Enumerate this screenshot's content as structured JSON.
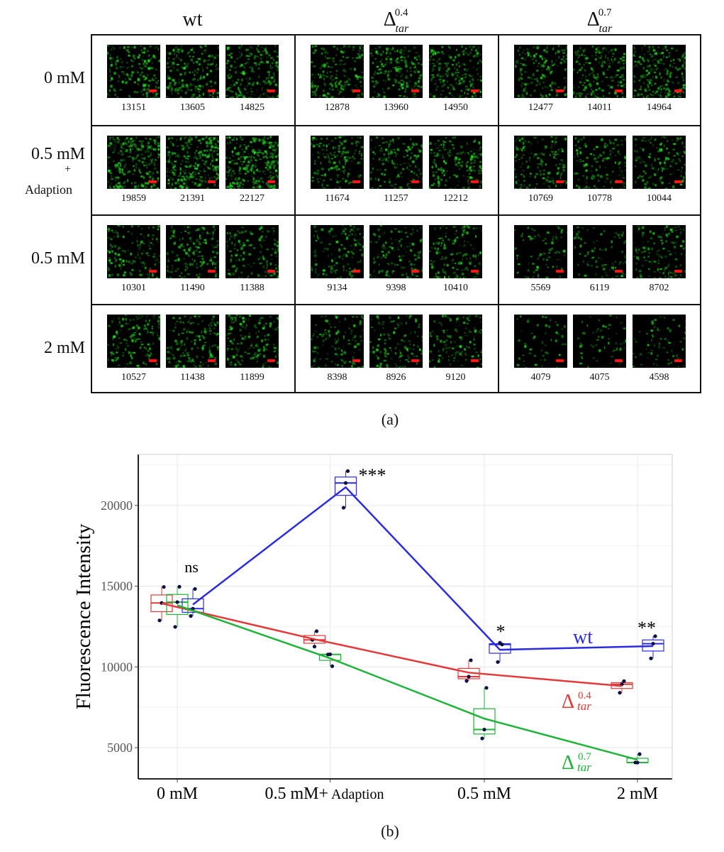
{
  "panel_a": {
    "label": "(a)",
    "columns": [
      {
        "name": "wt"
      },
      {
        "base": "Δ",
        "sub": "tar",
        "sup": "0.4"
      },
      {
        "base": "Δ",
        "sub": "tar",
        "sup": "0.7"
      }
    ],
    "rows": [
      {
        "label": "0 mM"
      },
      {
        "label": "0.5 mM",
        "plus": "+",
        "extra": "Adaption"
      },
      {
        "label": "0.5 mM"
      },
      {
        "label": "2 mM"
      }
    ],
    "values": [
      [
        [
          "13151",
          "13605",
          "14825"
        ],
        [
          "12878",
          "13960",
          "14950"
        ],
        [
          "12477",
          "14011",
          "14964"
        ]
      ],
      [
        [
          "19859",
          "21391",
          "22127"
        ],
        [
          "11674",
          "11257",
          "12212"
        ],
        [
          "10769",
          "10778",
          "10044"
        ]
      ],
      [
        [
          "10301",
          "11490",
          "11388"
        ],
        [
          "9134",
          "9398",
          "10410"
        ],
        [
          "5569",
          "6119",
          "8702"
        ]
      ],
      [
        [
          "10527",
          "11438",
          "11899"
        ],
        [
          "8398",
          "8926",
          "9120"
        ],
        [
          "4079",
          "4075",
          "4598"
        ]
      ]
    ],
    "scale_bar_color": "#ff1a1a",
    "cell_color": "#30d030"
  },
  "panel_b_label": "(b)",
  "chart_data": {
    "type": "box",
    "ylabel": "Fluorescence Intensity",
    "xlabel": "",
    "categories": [
      "0 mM",
      "0.5 mM+",
      "0.5 mM",
      "2 mM"
    ],
    "category_suffix": {
      "1": "Adaption"
    },
    "ylim": [
      3065,
      23160
    ],
    "yticks": [
      5000,
      10000,
      15000,
      20000
    ],
    "ytick_labels": [
      "5000",
      "10000",
      "15000",
      "20000"
    ],
    "grid": true,
    "series": [
      {
        "name": "Δtar 0.4",
        "label_base": "Δ",
        "label_sub": "tar",
        "label_sup": "0.4",
        "color": "#e23a3a",
        "values": [
          [
            12878,
            13960,
            14950
          ],
          [
            11674,
            11257,
            12212
          ],
          [
            9134,
            9398,
            10410
          ],
          [
            8398,
            8926,
            9120
          ]
        ],
        "means": [
          13929,
          11714,
          9647,
          8815
        ]
      },
      {
        "name": "Δtar 0.7",
        "label_base": "Δ",
        "label_sub": "tar",
        "label_sup": "0.7",
        "color": "#1fb33a",
        "values": [
          [
            12477,
            14011,
            14964
          ],
          [
            10769,
            10778,
            10044
          ],
          [
            5569,
            6119,
            8702
          ],
          [
            4079,
            4075,
            4598
          ]
        ],
        "means": [
          13817,
          10530,
          6797,
          4251
        ]
      },
      {
        "name": "wt",
        "label_base": "wt",
        "color": "#2b2be0",
        "values": [
          [
            13151,
            13605,
            14825
          ],
          [
            19859,
            21391,
            22127
          ],
          [
            10301,
            11490,
            11388
          ],
          [
            10527,
            11438,
            11899
          ]
        ],
        "means": [
          13860,
          21126,
          11060,
          11288
        ]
      }
    ],
    "annotations": [
      {
        "text": "ns",
        "category": 0
      },
      {
        "text": "***",
        "category": 1
      },
      {
        "text": "*",
        "category": 2
      },
      {
        "text": "**",
        "category": 3
      }
    ]
  }
}
